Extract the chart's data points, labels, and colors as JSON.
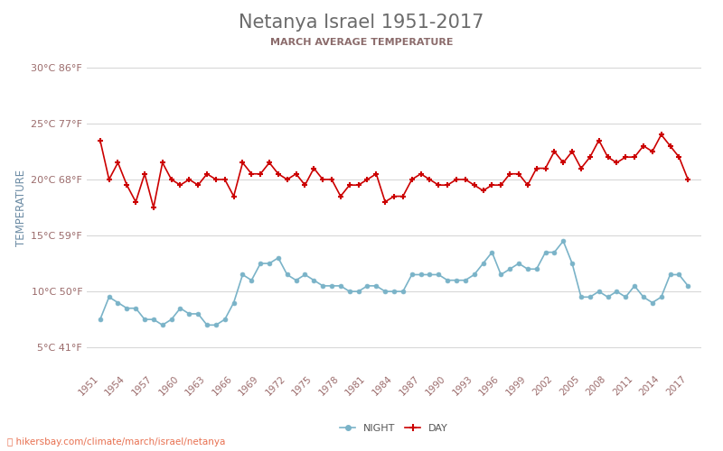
{
  "title": "Netanya Israel 1951-2017",
  "subtitle": "MARCH AVERAGE TEMPERATURE",
  "ylabel": "TEMPERATURE",
  "footer": "hikersbay.com/climate/march/israel/netanya",
  "years": [
    1951,
    1952,
    1953,
    1954,
    1955,
    1956,
    1957,
    1958,
    1959,
    1960,
    1961,
    1962,
    1963,
    1964,
    1965,
    1966,
    1967,
    1968,
    1969,
    1970,
    1971,
    1972,
    1973,
    1974,
    1975,
    1976,
    1977,
    1978,
    1979,
    1980,
    1981,
    1982,
    1983,
    1984,
    1985,
    1986,
    1987,
    1988,
    1989,
    1990,
    1991,
    1992,
    1993,
    1994,
    1995,
    1996,
    1997,
    1998,
    1999,
    2000,
    2001,
    2002,
    2003,
    2004,
    2005,
    2006,
    2007,
    2008,
    2009,
    2010,
    2011,
    2012,
    2013,
    2014,
    2015,
    2016,
    2017
  ],
  "day_temps": [
    23.5,
    20.0,
    21.5,
    19.5,
    18.0,
    20.5,
    17.5,
    21.5,
    20.0,
    19.5,
    20.0,
    19.5,
    20.5,
    20.0,
    20.0,
    18.5,
    21.5,
    20.5,
    20.5,
    21.5,
    20.5,
    20.0,
    20.5,
    19.5,
    21.0,
    20.0,
    20.0,
    18.5,
    19.5,
    19.5,
    20.0,
    20.5,
    18.0,
    18.5,
    18.5,
    20.0,
    20.5,
    20.0,
    19.5,
    19.5,
    20.0,
    20.0,
    19.5,
    19.0,
    19.5,
    19.5,
    20.5,
    20.5,
    19.5,
    21.0,
    21.0,
    22.5,
    21.5,
    22.5,
    21.0,
    22.0,
    23.5,
    22.0,
    21.5,
    22.0,
    22.0,
    23.0,
    22.5,
    24.0,
    23.0,
    22.0,
    20.0
  ],
  "night_temps": [
    7.5,
    9.5,
    9.0,
    8.5,
    8.5,
    7.5,
    7.5,
    7.0,
    7.5,
    8.5,
    8.0,
    8.0,
    7.0,
    7.0,
    7.5,
    9.0,
    11.5,
    11.0,
    12.5,
    12.5,
    13.0,
    11.5,
    11.0,
    11.5,
    11.0,
    10.5,
    10.5,
    10.5,
    10.0,
    10.0,
    10.5,
    10.5,
    10.0,
    10.0,
    10.0,
    11.5,
    11.5,
    11.5,
    11.5,
    11.0,
    11.0,
    11.0,
    11.5,
    12.5,
    13.5,
    11.5,
    12.0,
    12.5,
    12.0,
    12.0,
    13.5,
    13.5,
    14.5,
    12.5,
    9.5,
    9.5,
    10.0,
    9.5,
    10.0,
    9.5,
    10.5,
    9.5,
    9.0,
    9.5,
    11.5,
    11.5,
    10.5
  ],
  "day_color": "#cc0000",
  "night_color": "#7ab3c8",
  "background_color": "#ffffff",
  "grid_color": "#d8d8d8",
  "title_color": "#6b6b6b",
  "subtitle_color": "#8b6b6b",
  "ylabel_color": "#6b8ba4",
  "tick_color": "#9b6b6b",
  "footer_color": "#e87050",
  "yticks_celsius": [
    5,
    10,
    15,
    20,
    25,
    30
  ],
  "yticks_fahrenheit": [
    41,
    50,
    59,
    68,
    77,
    86
  ],
  "ylim": [
    3,
    32
  ],
  "xtick_years": [
    1951,
    1954,
    1957,
    1960,
    1963,
    1966,
    1969,
    1972,
    1975,
    1978,
    1981,
    1984,
    1987,
    1990,
    1993,
    1996,
    1999,
    2002,
    2005,
    2008,
    2011,
    2014,
    2017
  ]
}
